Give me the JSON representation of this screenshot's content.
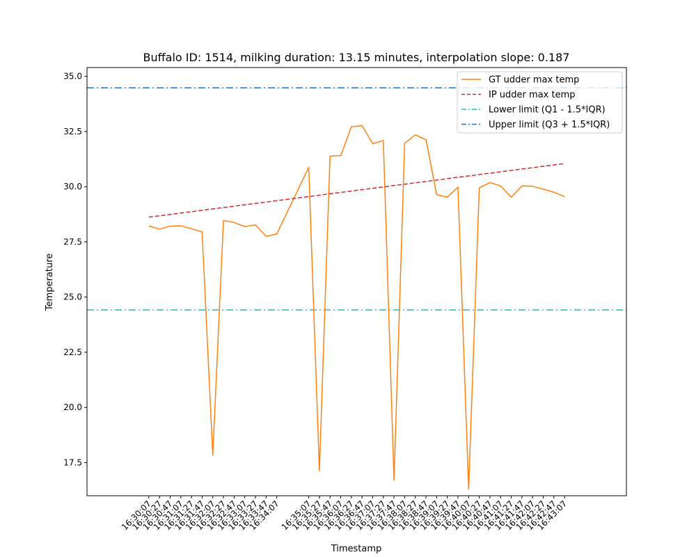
{
  "chart_data": {
    "type": "line",
    "title": "Buffalo ID: 1514, milking duration: 13.15 minutes, interpolation slope: 0.187",
    "xlabel": "Timestamp",
    "ylabel": "Temperature",
    "ylim": [
      16.0,
      35.4
    ],
    "yticks": [
      17.5,
      20.0,
      22.5,
      25.0,
      27.5,
      30.0,
      32.5,
      35.0
    ],
    "ytick_labels": [
      "17.5",
      "20.0",
      "22.5",
      "25.0",
      "27.5",
      "30.0",
      "32.5",
      "35.0"
    ],
    "xlim": [
      "16:28:11",
      "16:45:03"
    ],
    "x_tick_labels": [
      "16:30:07",
      "16:30:27",
      "16:30:47",
      "16:31:07",
      "16:31:27",
      "16:31:47",
      "16:32:07",
      "16:32:27",
      "16:32:47",
      "16:33:07",
      "16:33:27",
      "16:33:47",
      "16:34:07",
      "16:35:07",
      "16:35:27",
      "16:35:47",
      "16:36:07",
      "16:36:27",
      "16:36:47",
      "16:37:07",
      "16:37:27",
      "16:37:47",
      "16:38:07",
      "16:38:27",
      "16:38:47",
      "16:39:07",
      "16:39:27",
      "16:39:47",
      "16:40:07",
      "16:40:27",
      "16:40:47",
      "16:41:07",
      "16:41:27",
      "16:41:47",
      "16:42:07",
      "16:42:27",
      "16:42:47",
      "16:43:07"
    ],
    "grid": false,
    "legend": {
      "placement": "top-right"
    },
    "series": [
      {
        "name": "GT udder max temp",
        "color": "#ff7f0e",
        "style": "solid",
        "x": [
          "16:30:07",
          "16:30:27",
          "16:30:47",
          "16:31:07",
          "16:31:27",
          "16:31:47",
          "16:32:07",
          "16:32:27",
          "16:32:47",
          "16:33:07",
          "16:33:27",
          "16:33:47",
          "16:34:07",
          "16:35:07",
          "16:35:27",
          "16:35:47",
          "16:36:07",
          "16:36:27",
          "16:36:47",
          "16:37:07",
          "16:37:27",
          "16:37:47",
          "16:38:07",
          "16:38:27",
          "16:38:47",
          "16:39:07",
          "16:39:27",
          "16:39:47",
          "16:40:07",
          "16:40:27",
          "16:40:47",
          "16:41:07",
          "16:41:27",
          "16:41:47",
          "16:42:07",
          "16:42:27",
          "16:42:47",
          "16:43:07"
        ],
        "y": [
          28.22,
          28.08,
          28.21,
          28.23,
          28.1,
          27.95,
          17.83,
          28.47,
          28.38,
          28.19,
          28.27,
          27.75,
          27.86,
          30.88,
          17.13,
          31.39,
          31.41,
          32.71,
          32.77,
          31.95,
          32.09,
          16.7,
          31.97,
          32.35,
          32.13,
          29.64,
          29.53,
          29.98,
          16.3,
          29.95,
          30.19,
          30.04,
          29.52,
          30.04,
          30.02,
          29.89,
          29.75,
          29.55
        ]
      },
      {
        "name": "IP udder max temp",
        "color": "#d62728",
        "style": "dashed",
        "x": [
          "16:30:07",
          "16:43:07"
        ],
        "y": [
          28.62,
          31.05
        ]
      }
    ],
    "hlines": [
      {
        "name": "Lower limit (Q1 - 1.5*IQR)",
        "color": "#17becf",
        "style": "dashdot",
        "y": 24.42
      },
      {
        "name": "Upper limit (Q3 + 1.5*IQR)",
        "color": "#1f77b4",
        "style": "dashdot",
        "y": 34.48
      }
    ]
  }
}
